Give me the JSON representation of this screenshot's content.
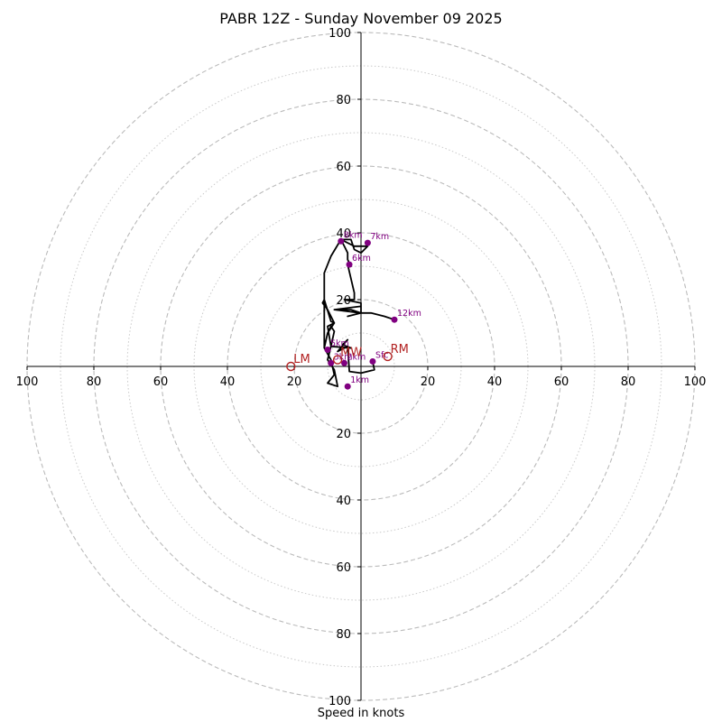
{
  "chart_data": {
    "type": "hodograph",
    "title": "PABR 12Z - Sunday November 09 2025",
    "xlabel": "Speed in knots",
    "units": "knots",
    "axis_range": [
      -100,
      100
    ],
    "major_rings": [
      20,
      40,
      60,
      80,
      100
    ],
    "minor_rings": [
      10,
      30,
      50,
      70,
      90
    ],
    "tick_values": [
      100,
      80,
      60,
      40,
      20
    ],
    "colors": {
      "hodo_line": "#000000",
      "height_markers": "#800080",
      "motion_markers": "#b22222",
      "grid": "#bbbbbb",
      "axes": "#000000"
    },
    "hodograph_uv": [
      [
        3.5,
        1.5
      ],
      [
        4,
        -1
      ],
      [
        0,
        -2
      ],
      [
        -3.5,
        -1.5
      ],
      [
        -4,
        6
      ],
      [
        -7,
        4.5
      ],
      [
        -4,
        8
      ],
      [
        -5.5,
        6.5
      ],
      [
        -3,
        5.5
      ],
      [
        -9,
        6
      ],
      [
        -10,
        2
      ],
      [
        -8,
        -1
      ],
      [
        -7,
        -6
      ],
      [
        -10,
        -5
      ],
      [
        -8,
        -2.5
      ],
      [
        -9,
        2
      ],
      [
        -11,
        5.5
      ],
      [
        -10,
        10
      ],
      [
        -9,
        12
      ],
      [
        -8,
        10.5
      ],
      [
        -9,
        6
      ],
      [
        -10,
        12
      ],
      [
        -8,
        13
      ],
      [
        -9,
        13.5
      ],
      [
        -11,
        20
      ],
      [
        -11.5,
        19
      ],
      [
        -10,
        17
      ],
      [
        -8,
        13
      ],
      [
        -10,
        10
      ],
      [
        -11,
        5.5
      ],
      [
        -11,
        12
      ],
      [
        -11,
        19
      ],
      [
        -11,
        24
      ],
      [
        -11,
        28
      ],
      [
        -9,
        33
      ],
      [
        -6,
        38
      ],
      [
        -3,
        38
      ],
      [
        -2,
        35
      ],
      [
        0,
        34
      ],
      [
        2,
        36
      ],
      [
        -2,
        36
      ],
      [
        -6,
        38
      ],
      [
        -4,
        34
      ],
      [
        -4,
        32
      ],
      [
        -3,
        30
      ],
      [
        -4,
        30.5
      ],
      [
        -2,
        22
      ],
      [
        -2,
        20
      ],
      [
        -5,
        20
      ],
      [
        0,
        19
      ],
      [
        0,
        18
      ],
      [
        -8,
        17
      ],
      [
        -3,
        17
      ],
      [
        0,
        16
      ],
      [
        -4,
        15
      ],
      [
        0,
        16
      ],
      [
        -8,
        17
      ],
      [
        0,
        18
      ],
      [
        0,
        16
      ],
      [
        3,
        16
      ],
      [
        7,
        15
      ],
      [
        10,
        14
      ]
    ],
    "height_markers": [
      {
        "label": "Sfc",
        "u": 3.5,
        "v": 1.5
      },
      {
        "label": "1km",
        "u": -4,
        "v": -6
      },
      {
        "label": "2km",
        "u": -5,
        "v": 1
      },
      {
        "label": "3km",
        "u": -9,
        "v": 1
      },
      {
        "label": "5km",
        "u": -10,
        "v": 5
      },
      {
        "label": "6km",
        "u": -3.5,
        "v": 30.5
      },
      {
        "label": "7km",
        "u": 2,
        "v": 37
      },
      {
        "label": "8km",
        "u": -6,
        "v": 37.5
      },
      {
        "label": "12km",
        "u": 10,
        "v": 14
      }
    ],
    "storm_motion": [
      {
        "label": "RM",
        "u": 8,
        "v": 3
      },
      {
        "label": "LM",
        "u": -21,
        "v": 0
      },
      {
        "label": "MW",
        "u": -7,
        "v": 2
      }
    ]
  }
}
